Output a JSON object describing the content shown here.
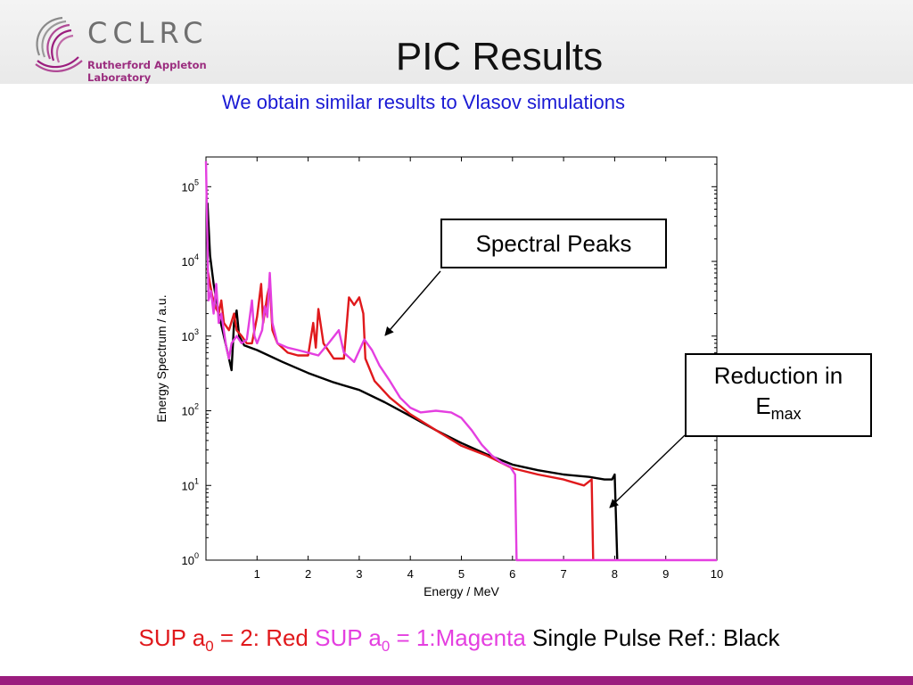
{
  "header": {
    "logo": {
      "name": "CCLRC",
      "subtitle": "Rutherford Appleton Laboratory"
    },
    "title": "PIC Results",
    "subtitle": "We obtain similar results to Vlasov simulations"
  },
  "annotations": {
    "spectral_peaks": "Spectral Peaks",
    "reduction_text": "Reduction in",
    "emax_main": "E",
    "emax_sub": "max"
  },
  "legend": {
    "red_prefix": "SUP a",
    "red_sub": "0",
    "red_suffix": " = 2: Red ",
    "magenta_prefix": "SUP a",
    "magenta_sub": "0",
    "magenta_suffix": " = 1:Magenta ",
    "black_text": "Single Pulse Ref.: Black"
  },
  "colors": {
    "title": "#111111",
    "subtitle": "#1a1ad4",
    "red": "#e0191c",
    "magenta": "#e43fe0",
    "black": "#000000",
    "brand_purple": "#9b1d7e"
  },
  "chart_data": {
    "type": "line",
    "xlabel": "Energy / MeV",
    "ylabel": "Energy Spectrum / a.u.",
    "xlim": [
      0,
      10
    ],
    "ylim": [
      1,
      250000
    ],
    "yscale": "log",
    "xticks": [
      1,
      2,
      3,
      4,
      5,
      6,
      7,
      8,
      9,
      10
    ],
    "yticks": [
      {
        "value": 1,
        "base": "10",
        "exp": "0"
      },
      {
        "value": 10,
        "base": "10",
        "exp": "1"
      },
      {
        "value": 100,
        "base": "10",
        "exp": "2"
      },
      {
        "value": 1000,
        "base": "10",
        "exp": "3"
      },
      {
        "value": 10000,
        "base": "10",
        "exp": "4"
      },
      {
        "value": 100000,
        "base": "10",
        "exp": "5"
      }
    ],
    "grid": false,
    "series": [
      {
        "color": "#000000",
        "points": [
          [
            0.03,
            60000
          ],
          [
            0.08,
            12000
          ],
          [
            0.15,
            5000
          ],
          [
            0.25,
            2000
          ],
          [
            0.35,
            1000
          ],
          [
            0.45,
            500
          ],
          [
            0.5,
            350
          ],
          [
            0.55,
            1500
          ],
          [
            0.6,
            2200
          ],
          [
            0.65,
            1000
          ],
          [
            0.75,
            750
          ],
          [
            1.0,
            650
          ],
          [
            1.5,
            450
          ],
          [
            2.0,
            320
          ],
          [
            2.5,
            240
          ],
          [
            3.0,
            190
          ],
          [
            3.5,
            130
          ],
          [
            4.0,
            85
          ],
          [
            4.5,
            55
          ],
          [
            5.0,
            37
          ],
          [
            5.5,
            26
          ],
          [
            6.0,
            19
          ],
          [
            6.5,
            16
          ],
          [
            7.0,
            14
          ],
          [
            7.5,
            13
          ],
          [
            7.8,
            12
          ],
          [
            7.95,
            12
          ],
          [
            8.0,
            14
          ],
          [
            8.05,
            1
          ]
        ]
      },
      {
        "color": "#e0191c",
        "points": [
          [
            0.03,
            8000
          ],
          [
            0.08,
            5000
          ],
          [
            0.12,
            3500
          ],
          [
            0.18,
            2500
          ],
          [
            0.25,
            2000
          ],
          [
            0.3,
            3000
          ],
          [
            0.35,
            1500
          ],
          [
            0.45,
            1200
          ],
          [
            0.55,
            2000
          ],
          [
            0.6,
            1200
          ],
          [
            0.7,
            1000
          ],
          [
            0.8,
            800
          ],
          [
            0.9,
            800
          ],
          [
            1.0,
            1800
          ],
          [
            1.08,
            5000
          ],
          [
            1.12,
            1500
          ],
          [
            1.2,
            3500
          ],
          [
            1.25,
            5000
          ],
          [
            1.3,
            1200
          ],
          [
            1.4,
            800
          ],
          [
            1.6,
            600
          ],
          [
            1.8,
            550
          ],
          [
            2.0,
            550
          ],
          [
            2.1,
            1500
          ],
          [
            2.15,
            700
          ],
          [
            2.2,
            2300
          ],
          [
            2.3,
            800
          ],
          [
            2.5,
            500
          ],
          [
            2.7,
            500
          ],
          [
            2.8,
            3300
          ],
          [
            2.9,
            2600
          ],
          [
            3.0,
            3300
          ],
          [
            3.08,
            2000
          ],
          [
            3.12,
            500
          ],
          [
            3.3,
            250
          ],
          [
            3.6,
            150
          ],
          [
            4.0,
            90
          ],
          [
            4.5,
            55
          ],
          [
            5.0,
            34
          ],
          [
            5.5,
            25
          ],
          [
            6.0,
            17
          ],
          [
            6.5,
            14
          ],
          [
            7.0,
            12
          ],
          [
            7.4,
            10
          ],
          [
            7.55,
            12
          ],
          [
            7.58,
            1
          ]
        ]
      },
      {
        "color": "#e43fe0",
        "points": [
          [
            0.0,
            220000
          ],
          [
            0.05,
            3000
          ],
          [
            0.1,
            4000
          ],
          [
            0.15,
            2000
          ],
          [
            0.2,
            5000
          ],
          [
            0.25,
            1500
          ],
          [
            0.3,
            2000
          ],
          [
            0.4,
            700
          ],
          [
            0.45,
            500
          ],
          [
            0.5,
            800
          ],
          [
            0.6,
            1000
          ],
          [
            0.7,
            800
          ],
          [
            0.8,
            900
          ],
          [
            0.9,
            3000
          ],
          [
            0.95,
            1000
          ],
          [
            1.0,
            800
          ],
          [
            1.1,
            1200
          ],
          [
            1.15,
            2500
          ],
          [
            1.2,
            1800
          ],
          [
            1.25,
            7000
          ],
          [
            1.3,
            1500
          ],
          [
            1.4,
            800
          ],
          [
            1.6,
            700
          ],
          [
            1.8,
            650
          ],
          [
            2.0,
            600
          ],
          [
            2.2,
            550
          ],
          [
            2.4,
            800
          ],
          [
            2.6,
            1200
          ],
          [
            2.7,
            600
          ],
          [
            2.9,
            450
          ],
          [
            3.1,
            900
          ],
          [
            3.25,
            650
          ],
          [
            3.4,
            400
          ],
          [
            3.6,
            250
          ],
          [
            3.8,
            150
          ],
          [
            4.0,
            110
          ],
          [
            4.2,
            95
          ],
          [
            4.5,
            100
          ],
          [
            4.8,
            95
          ],
          [
            5.0,
            80
          ],
          [
            5.2,
            55
          ],
          [
            5.4,
            35
          ],
          [
            5.6,
            25
          ],
          [
            5.8,
            20
          ],
          [
            5.95,
            18
          ],
          [
            6.05,
            14
          ],
          [
            6.08,
            1
          ],
          [
            10.0,
            1
          ]
        ]
      }
    ]
  }
}
